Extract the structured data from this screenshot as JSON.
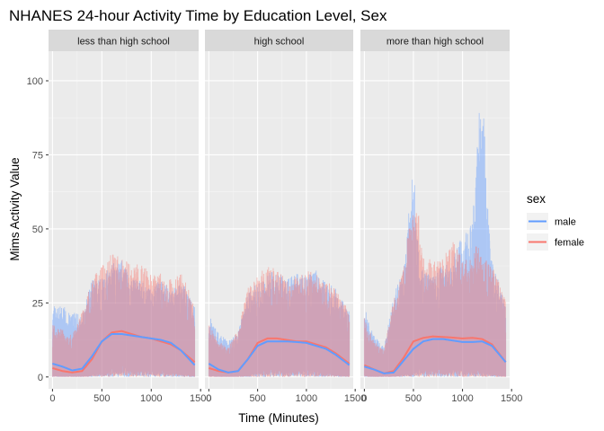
{
  "chart_data": {
    "type": "area",
    "title": "NHANES 24-hour Activity Time by Education Level, Sex",
    "xlabel": "Time (Minutes)",
    "ylabel": "Mims Activity Value",
    "xlim": [
      -40,
      1480
    ],
    "ylim": [
      -4,
      110
    ],
    "x_ticks": [
      0,
      500,
      1000,
      1500
    ],
    "x_tick_labels": [
      "0",
      "500",
      "1000",
      "1500"
    ],
    "y_ticks": [
      0,
      25,
      50,
      75,
      100
    ],
    "y_tick_labels": [
      "0",
      "25",
      "50",
      "75",
      "100"
    ],
    "grid": true,
    "legend": {
      "title": "sex",
      "position": "right"
    },
    "series": [
      {
        "name": "male",
        "color": "#619CFF"
      },
      {
        "name": "female",
        "color": "#F8766D"
      }
    ],
    "facets": [
      {
        "label": "less than high school",
        "mean_x": [
          0,
          100,
          200,
          300,
          400,
          500,
          600,
          700,
          800,
          900,
          1000,
          1100,
          1200,
          1300,
          1440
        ],
        "mean_male": [
          4.5,
          3.5,
          2.2,
          2.8,
          7,
          12,
          14.5,
          14.5,
          14,
          13.5,
          13,
          12.5,
          11.5,
          9,
          4
        ],
        "mean_female": [
          3,
          2,
          1.5,
          2,
          6,
          12,
          15,
          15.5,
          14.5,
          13.5,
          13,
          12,
          11,
          9,
          5
        ],
        "range_x": [
          0,
          100,
          200,
          300,
          400,
          500,
          600,
          700,
          800,
          900,
          1000,
          1100,
          1200,
          1300,
          1440
        ],
        "range_male_high": [
          24,
          24,
          22,
          21,
          33,
          34,
          38,
          40,
          33,
          33,
          31,
          33,
          30,
          33,
          24
        ],
        "range_female_high": [
          18,
          16,
          14,
          22,
          33,
          38,
          42,
          40,
          38,
          38,
          35,
          35,
          33,
          35,
          26
        ],
        "range_low": [
          0.5,
          0.3,
          0.2,
          0.3,
          1,
          2,
          3,
          4,
          3,
          3,
          3,
          2.5,
          2,
          1.5,
          0.5
        ]
      },
      {
        "label": "high school",
        "mean_x": [
          0,
          100,
          200,
          300,
          400,
          500,
          600,
          700,
          800,
          900,
          1000,
          1100,
          1200,
          1300,
          1440
        ],
        "mean_male": [
          4.5,
          2.5,
          1.5,
          2,
          6,
          10.5,
          12,
          12,
          12,
          11.8,
          11.5,
          10.5,
          9.5,
          7.5,
          4
        ],
        "mean_female": [
          3,
          2,
          1.5,
          2,
          6,
          11.5,
          13,
          13,
          12.5,
          12,
          12,
          11,
          10,
          8,
          4.5
        ],
        "range_x": [
          0,
          100,
          200,
          300,
          400,
          500,
          600,
          700,
          800,
          900,
          1000,
          1100,
          1200,
          1300,
          1440
        ],
        "range_male_high": [
          21,
          15,
          12,
          16,
          28,
          32,
          35,
          36,
          33,
          35,
          34,
          36,
          32,
          30,
          22
        ],
        "range_female_high": [
          18,
          12,
          10,
          16,
          30,
          34,
          38,
          36,
          34,
          34,
          36,
          35,
          32,
          31,
          22
        ],
        "range_low": [
          0.5,
          0.3,
          0.2,
          0.3,
          1,
          2,
          3,
          3,
          3,
          3,
          3,
          2.5,
          2,
          1.5,
          0.5
        ]
      },
      {
        "label": "more than high school",
        "mean_x": [
          0,
          100,
          200,
          300,
          400,
          500,
          600,
          700,
          800,
          900,
          1000,
          1100,
          1200,
          1300,
          1440
        ],
        "mean_male": [
          3.5,
          2.5,
          1.2,
          1.5,
          5.5,
          9.5,
          12,
          12.8,
          12.8,
          12.3,
          11.8,
          11.8,
          12,
          10.5,
          5
        ],
        "mean_female": [
          4,
          2.5,
          1.2,
          2,
          6.5,
          12,
          13.2,
          13.7,
          13.5,
          13.3,
          13,
          13.2,
          12.8,
          11,
          5
        ],
        "range_x": [
          0,
          100,
          200,
          300,
          400,
          500,
          560,
          600,
          700,
          800,
          900,
          1000,
          1100,
          1150,
          1200,
          1250,
          1300,
          1440
        ],
        "range_male_high": [
          24,
          14,
          10,
          28,
          36,
          74,
          40,
          36,
          34,
          38,
          40,
          48,
          52,
          80,
          104,
          60,
          40,
          24
        ],
        "range_female_high": [
          20,
          12,
          10,
          26,
          38,
          62,
          55,
          40,
          40,
          40,
          46,
          40,
          40,
          46,
          40,
          40,
          38,
          26
        ],
        "range_low": [
          0.5,
          0.3,
          0.2,
          0.3,
          1,
          2,
          3,
          3,
          3,
          3,
          3,
          3,
          3,
          2.5,
          2,
          2,
          1.5,
          0.5
        ]
      }
    ]
  }
}
